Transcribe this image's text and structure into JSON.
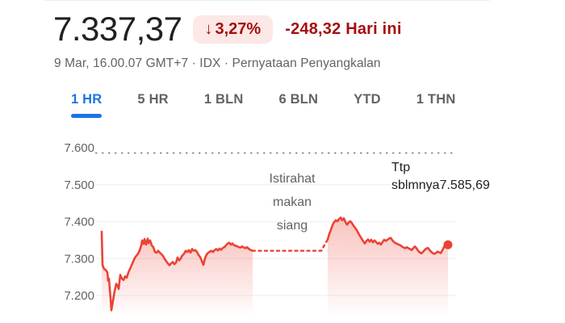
{
  "header": {
    "price": "7.337,37",
    "change_badge": {
      "arrow": "↓",
      "percent": "3,27%"
    },
    "change_text": "-248,32 Hari ini",
    "subtitle": "9 Mar, 16.00.07 GMT+7 · IDX · Pernyataan Penyangkalan"
  },
  "tabs": [
    {
      "label": "1 HR",
      "active": true
    },
    {
      "label": "5 HR",
      "active": false
    },
    {
      "label": "1 BLN",
      "active": false
    },
    {
      "label": "6 BLN",
      "active": false
    },
    {
      "label": "YTD",
      "active": false
    },
    {
      "label": "1 THN",
      "active": false
    }
  ],
  "colors": {
    "accent_blue": "#1a73e8",
    "negative_dark_red": "#a50e0e",
    "badge_background": "#fce8e6",
    "line_red": "#ea4335",
    "grid_gray": "#f0f1f2",
    "prev_close_gray": "#80868b",
    "text_primary": "#202124",
    "text_secondary": "#5f6368"
  },
  "chart_data": {
    "type": "area",
    "title": "IDX intraday price (1 HR view)",
    "ylim": [
      7150,
      7620
    ],
    "grid": true,
    "y_ticks": [
      {
        "label": "7.600",
        "value": 7600,
        "grid": false
      },
      {
        "label": "7.500",
        "value": 7500,
        "grid": true
      },
      {
        "label": "7.400",
        "value": 7400,
        "grid": true
      },
      {
        "label": "7.300",
        "value": 7300,
        "grid": true
      },
      {
        "label": "7.200",
        "value": 7200,
        "grid": true
      }
    ],
    "prev_close": {
      "label_prefix": "Ttp sblmnya",
      "value_label": "7.585,69",
      "value": 7585.69
    },
    "lunch_break_label": "Istirahat makan siang",
    "line_color": "#ea4335",
    "sessions": [
      {
        "name": "morning",
        "points": [
          [
            126,
            7373
          ],
          [
            127,
            7283
          ],
          [
            129,
            7272
          ],
          [
            131,
            7269
          ],
          [
            133,
            7263
          ],
          [
            134,
            7240
          ],
          [
            135,
            7246
          ],
          [
            136,
            7218
          ],
          [
            137,
            7192
          ],
          [
            138,
            7160
          ],
          [
            140,
            7186
          ],
          [
            142,
            7212
          ],
          [
            144,
            7232
          ],
          [
            146,
            7224
          ],
          [
            147,
            7218
          ],
          [
            149,
            7256
          ],
          [
            151,
            7246
          ],
          [
            153,
            7242
          ],
          [
            155,
            7252
          ],
          [
            157,
            7248
          ],
          [
            159,
            7262
          ],
          [
            161,
            7272
          ],
          [
            163,
            7282
          ],
          [
            165,
            7292
          ],
          [
            167,
            7302
          ],
          [
            169,
            7308
          ],
          [
            171,
            7313
          ],
          [
            173,
            7322
          ],
          [
            175,
            7336
          ],
          [
            176,
            7349
          ],
          [
            178,
            7340
          ],
          [
            179,
            7353
          ],
          [
            181,
            7338
          ],
          [
            183,
            7354
          ],
          [
            184,
            7342
          ],
          [
            186,
            7349
          ],
          [
            188,
            7336
          ],
          [
            190,
            7331
          ],
          [
            192,
            7318
          ],
          [
            194,
            7316
          ],
          [
            196,
            7321
          ],
          [
            198,
            7316
          ],
          [
            200,
            7312
          ],
          [
            202,
            7307
          ],
          [
            204,
            7299
          ],
          [
            206,
            7293
          ],
          [
            208,
            7287
          ],
          [
            210,
            7282
          ],
          [
            212,
            7287
          ],
          [
            214,
            7291
          ],
          [
            216,
            7285
          ],
          [
            218,
            7289
          ],
          [
            220,
            7303
          ],
          [
            222,
            7295
          ],
          [
            224,
            7301
          ],
          [
            226,
            7309
          ],
          [
            228,
            7313
          ],
          [
            230,
            7321
          ],
          [
            232,
            7318
          ],
          [
            234,
            7323
          ],
          [
            236,
            7316
          ],
          [
            238,
            7326
          ],
          [
            240,
            7321
          ],
          [
            242,
            7323
          ],
          [
            244,
            7318
          ],
          [
            246,
            7310
          ],
          [
            248,
            7304
          ],
          [
            250,
            7294
          ],
          [
            252,
            7283
          ],
          [
            254,
            7301
          ],
          [
            256,
            7311
          ],
          [
            258,
            7316
          ],
          [
            260,
            7319
          ],
          [
            262,
            7321
          ],
          [
            264,
            7318
          ],
          [
            266,
            7323
          ],
          [
            268,
            7326
          ],
          [
            270,
            7322
          ],
          [
            272,
            7327
          ],
          [
            274,
            7324
          ],
          [
            276,
            7329
          ],
          [
            278,
            7331
          ],
          [
            280,
            7336
          ],
          [
            282,
            7341
          ],
          [
            284,
            7343
          ],
          [
            286,
            7338
          ],
          [
            288,
            7341
          ],
          [
            290,
            7336
          ],
          [
            292,
            7335
          ],
          [
            294,
            7333
          ],
          [
            296,
            7331
          ],
          [
            298,
            7330
          ],
          [
            300,
            7333
          ],
          [
            302,
            7330
          ],
          [
            304,
            7328
          ],
          [
            306,
            7331
          ],
          [
            308,
            7327
          ],
          [
            310,
            7324
          ],
          [
            313,
            7321
          ]
        ]
      },
      {
        "name": "afternoon",
        "points": [
          [
            406,
            7352
          ],
          [
            408,
            7367
          ],
          [
            410,
            7378
          ],
          [
            412,
            7391
          ],
          [
            414,
            7399
          ],
          [
            416,
            7404
          ],
          [
            418,
            7401
          ],
          [
            420,
            7407
          ],
          [
            422,
            7411
          ],
          [
            424,
            7404
          ],
          [
            426,
            7409
          ],
          [
            428,
            7399
          ],
          [
            430,
            7392
          ],
          [
            432,
            7398
          ],
          [
            434,
            7401
          ],
          [
            436,
            7396
          ],
          [
            438,
            7389
          ],
          [
            440,
            7383
          ],
          [
            442,
            7377
          ],
          [
            444,
            7369
          ],
          [
            446,
            7361
          ],
          [
            448,
            7354
          ],
          [
            450,
            7347
          ],
          [
            452,
            7341
          ],
          [
            454,
            7348
          ],
          [
            456,
            7352
          ],
          [
            458,
            7346
          ],
          [
            460,
            7351
          ],
          [
            462,
            7344
          ],
          [
            464,
            7349
          ],
          [
            466,
            7345
          ],
          [
            468,
            7340
          ],
          [
            470,
            7343
          ],
          [
            472,
            7338
          ],
          [
            474,
            7345
          ],
          [
            476,
            7351
          ],
          [
            478,
            7348
          ],
          [
            480,
            7351
          ],
          [
            482,
            7354
          ],
          [
            484,
            7356
          ],
          [
            486,
            7350
          ],
          [
            488,
            7345
          ],
          [
            490,
            7342
          ],
          [
            492,
            7340
          ],
          [
            494,
            7338
          ],
          [
            496,
            7336
          ],
          [
            498,
            7333
          ],
          [
            500,
            7330
          ],
          [
            502,
            7328
          ],
          [
            504,
            7331
          ],
          [
            506,
            7328
          ],
          [
            508,
            7326
          ],
          [
            510,
            7323
          ],
          [
            512,
            7328
          ],
          [
            514,
            7333
          ],
          [
            516,
            7328
          ],
          [
            518,
            7321
          ],
          [
            520,
            7317
          ],
          [
            522,
            7314
          ],
          [
            524,
            7318
          ],
          [
            526,
            7323
          ],
          [
            528,
            7327
          ],
          [
            530,
            7329
          ],
          [
            532,
            7324
          ],
          [
            534,
            7319
          ],
          [
            536,
            7315
          ],
          [
            538,
            7313
          ],
          [
            540,
            7315
          ],
          [
            542,
            7319
          ],
          [
            544,
            7317
          ],
          [
            546,
            7315
          ],
          [
            548,
            7322
          ],
          [
            550,
            7331
          ],
          [
            552,
            7341
          ],
          [
            554,
            7344
          ],
          [
            555,
            7340
          ]
        ]
      }
    ],
    "lunch_connector": {
      "points": [
        [
          313,
          7321
        ],
        [
          398,
          7321
        ],
        [
          406,
          7352
        ]
      ]
    },
    "end_dot": {
      "x": 555,
      "price": 7337.37
    }
  }
}
